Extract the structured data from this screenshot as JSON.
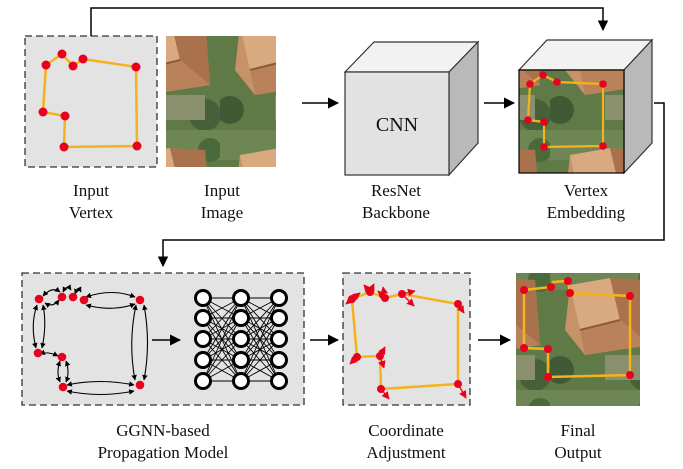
{
  "captions": {
    "input_vertex": [
      "Input",
      "Vertex"
    ],
    "input_image": [
      "Input",
      "Image"
    ],
    "resnet": [
      "ResNet",
      "Backbone"
    ],
    "vertex_embedding": [
      "Vertex",
      "Embedding"
    ],
    "ggnn": [
      "GGNN-based",
      "Propagation Model"
    ],
    "coordinate": [
      "Coordinate",
      "Adjustment"
    ],
    "final": [
      "Final",
      "Output"
    ]
  },
  "cnn_label": "CNN",
  "colors": {
    "vertex": "#e8001c",
    "polygon": "#f5b21a",
    "panel": "#e3e3e3",
    "cube_front": "#e2e2e2",
    "cube_top": "#f2f2f2",
    "cube_side": "#b9b9b9",
    "roof_light": "#d7a47a",
    "roof_dark": "#a9714c",
    "grass": "#5f7a47"
  },
  "icons": {
    "aerial_image": "aerial-rooftop-image",
    "neural_net": "neural-network-icon"
  }
}
